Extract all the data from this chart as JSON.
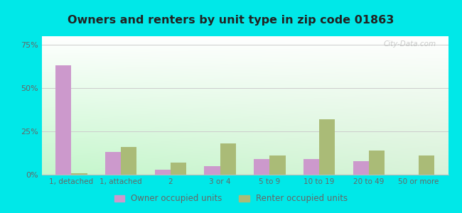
{
  "title": "Owners and renters by unit type in zip code 01863",
  "categories": [
    "1, detached",
    "1, attached",
    "2",
    "3 or 4",
    "5 to 9",
    "10 to 19",
    "20 to 49",
    "50 or more"
  ],
  "owner_values": [
    63,
    13,
    3,
    5,
    9,
    9,
    8,
    0
  ],
  "renter_values": [
    1,
    16,
    7,
    18,
    11,
    32,
    14,
    11
  ],
  "owner_color": "#cc99cc",
  "renter_color": "#aabb77",
  "outer_background": "#00e8e8",
  "ytick_labels": [
    "0%",
    "25%",
    "50%",
    "75%"
  ],
  "ytick_values": [
    0,
    25,
    50,
    75
  ],
  "ylim": [
    0,
    80
  ],
  "legend_owner": "Owner occupied units",
  "legend_renter": "Renter occupied units",
  "watermark": "City-Data.com",
  "bar_width": 0.32,
  "title_color": "#222222",
  "tick_color": "#666666"
}
